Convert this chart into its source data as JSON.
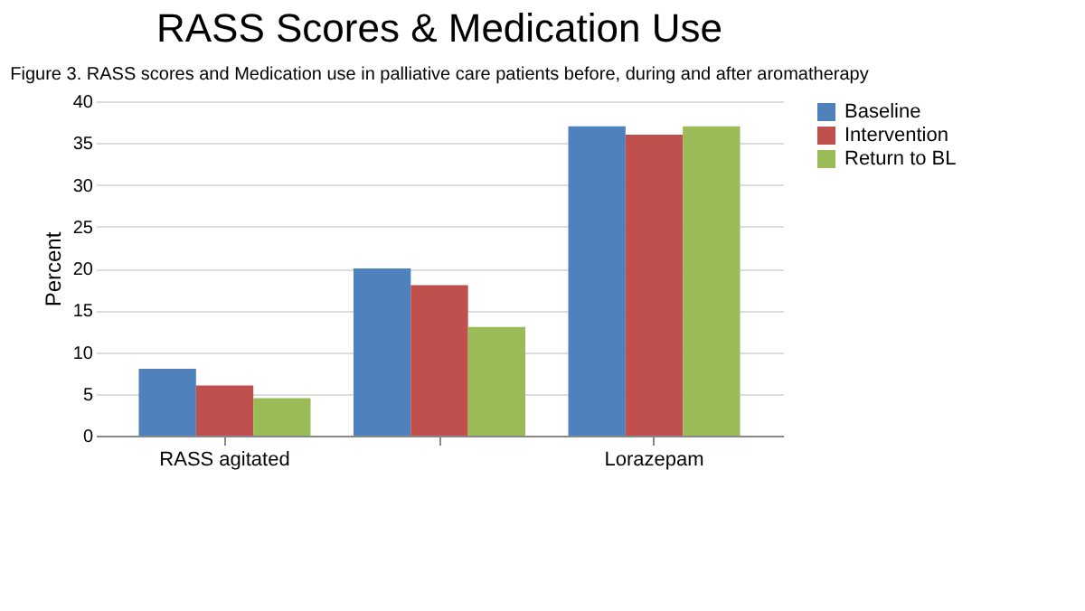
{
  "chart_data": {
    "type": "bar",
    "title": "RASS Scores & Medication Use",
    "annotations": [
      "Figure 3. RASS scores and Medication use in palliative care patients before, during and after aromatherapy"
    ],
    "ylabel": "Percent",
    "categories": [
      "RASS agitated",
      null,
      "Lorazepam"
    ],
    "series": [
      {
        "name": "Baseline",
        "color": "#4f81bd",
        "values": [
          8,
          20,
          37
        ]
      },
      {
        "name": "Intervention",
        "color": "#c0504d",
        "values": [
          6,
          18,
          36
        ]
      },
      {
        "name": "Return to BL",
        "color": "#9bbb59",
        "values": [
          4.5,
          13,
          37
        ]
      }
    ],
    "ylim": [
      0,
      40
    ],
    "yticks": [
      0,
      5,
      10,
      15,
      20,
      25,
      30,
      35,
      40
    ],
    "grid": "y",
    "legend": "right"
  }
}
